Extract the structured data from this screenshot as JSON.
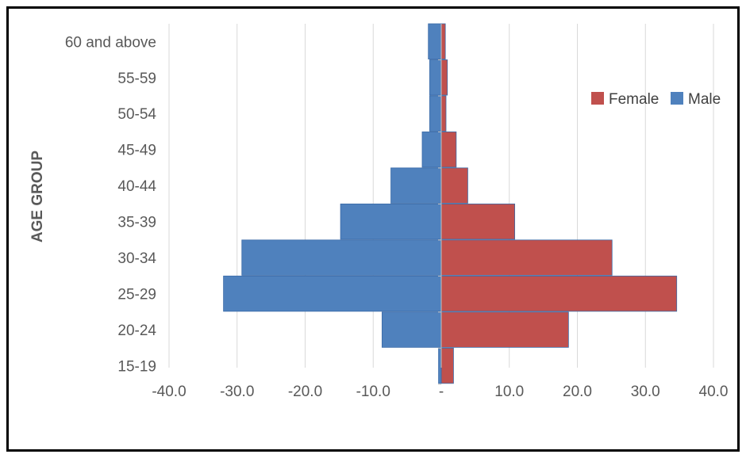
{
  "chart_data": {
    "type": "bar",
    "orientation": "horizontal",
    "subtype": "population-pyramid",
    "ylabel": "AGE GROUP",
    "categories": [
      "15-19",
      "20-24",
      "25-29",
      "30-34",
      "35-39",
      "40-44",
      "45-49",
      "50-54",
      "55-59",
      "60 and above"
    ],
    "series": [
      {
        "name": "Female",
        "color": "#C0504D",
        "values": [
          1.8,
          18.7,
          34.6,
          25.1,
          10.8,
          3.9,
          2.2,
          0.7,
          0.9,
          0.6
        ]
      },
      {
        "name": "Male",
        "color": "#4F81BD",
        "values": [
          -0.4,
          -8.7,
          -32.0,
          -29.3,
          -14.8,
          -7.4,
          -2.8,
          -1.7,
          -1.7,
          -1.9
        ]
      }
    ],
    "xlim": [
      -40,
      40
    ],
    "xticks": [
      -40,
      -30,
      -20,
      -10,
      0,
      10,
      20,
      30,
      40
    ],
    "xtick_labels": [
      "-40.0",
      "-30.0",
      "-20.0",
      "-10.0",
      "-",
      "10.0",
      "20.0",
      "30.0",
      "40.0"
    ],
    "grid": "vertical",
    "legend": "right"
  }
}
